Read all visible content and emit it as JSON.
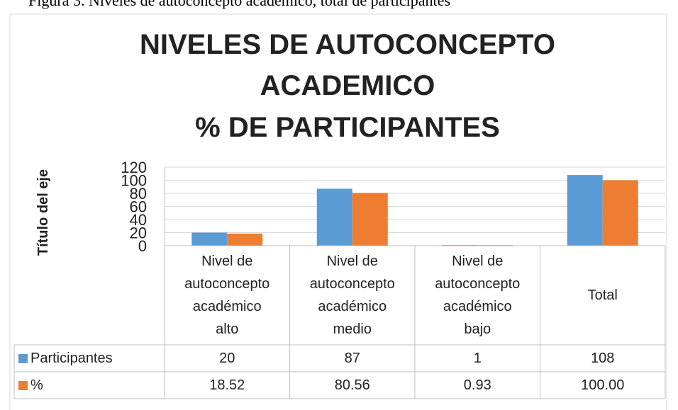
{
  "caption": "Figura 3. Niveles de autoconcepto académico, total de participantes",
  "chart_data": {
    "type": "bar",
    "title": [
      "NIVELES DE AUTOCONCEPTO",
      "ACADEMICO",
      "% DE PARTICIPANTES"
    ],
    "y_label": "Título del eje",
    "categories": [
      "Nivel de autoconcepto académico alto",
      "Nivel de autoconcepto académico medio",
      "Nivel de autoconcepto académico bajo",
      "Total"
    ],
    "series": [
      {
        "name": "Participantes",
        "color": "#5b9bd5",
        "values": [
          20,
          87,
          1,
          108
        ]
      },
      {
        "name": "%",
        "color": "#ed7d31",
        "values": [
          18.52,
          80.56,
          0.93,
          100
        ],
        "value_labels": [
          "18.52",
          "80.56",
          "0.93",
          "100.00"
        ]
      }
    ],
    "ylim": [
      0,
      120
    ],
    "yticks": [
      0,
      20,
      40,
      60,
      80,
      100,
      120
    ],
    "grid": true
  }
}
